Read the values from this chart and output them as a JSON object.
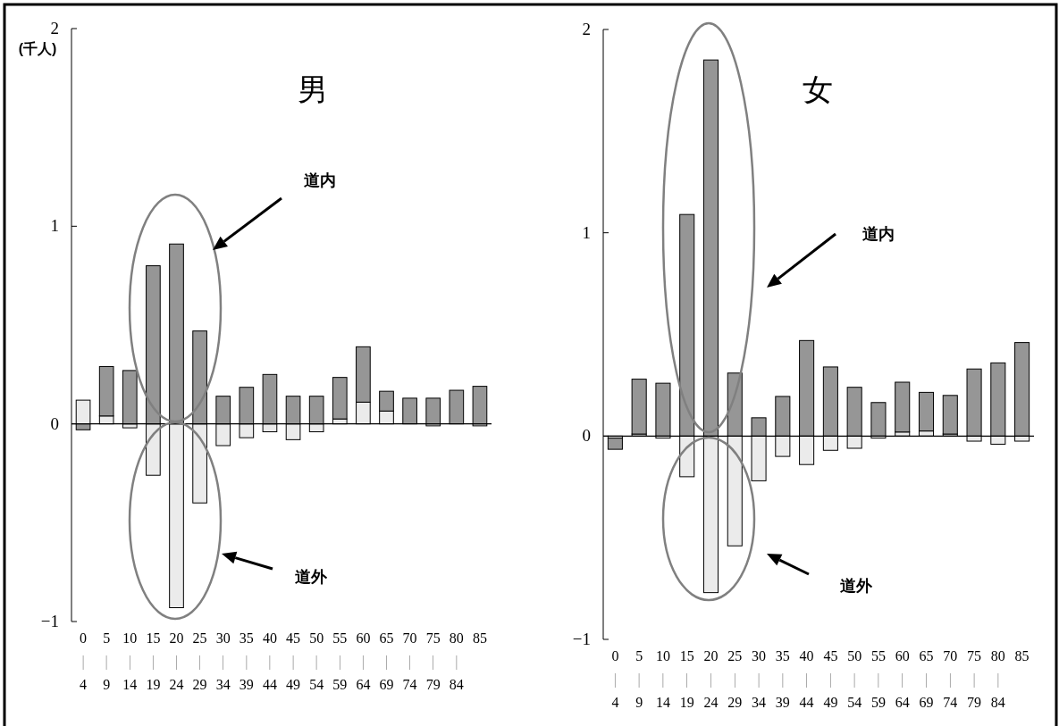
{
  "chart_data": [
    {
      "type": "bar",
      "title": "男",
      "ylabel": "(千人)",
      "stacked": true,
      "categories": [
        "0\n|\n4",
        "5\n|\n9",
        "10\n|\n14",
        "15\n|\n19",
        "20\n|\n24",
        "25\n|\n29",
        "30\n|\n34",
        "35\n|\n39",
        "40\n|\n44",
        "45\n|\n49",
        "50\n|\n54",
        "55\n|\n59",
        "60\n|\n64",
        "65\n|\n69",
        "70\n|\n74",
        "75\n|\n79",
        "80\n|\n84",
        "85"
      ],
      "series": [
        {
          "color": "#ebebeb",
          "values": [
            0.12,
            0.04,
            -0.02,
            -0.26,
            -0.93,
            -0.4,
            -0.11,
            -0.07,
            -0.04,
            -0.08,
            -0.04,
            0.025,
            0.11,
            0.065,
            0,
            -0.01,
            0,
            -0.01
          ]
        },
        {
          "color": "#969696",
          "values": [
            -0.03,
            0.25,
            0.27,
            0.8,
            0.91,
            0.47,
            0.14,
            0.185,
            0.25,
            0.14,
            0.14,
            0.21,
            0.28,
            0.1,
            0.13,
            0.13,
            0.17,
            0.19
          ]
        }
      ],
      "ylim": [
        -1,
        2
      ],
      "yticks": [
        {
          "value": -1,
          "label": "−1"
        },
        0,
        1,
        2
      ],
      "annotations": [
        "道内",
        "道外"
      ]
    },
    {
      "type": "bar",
      "title": "女",
      "stacked": true,
      "categories": [
        "0\n|\n4",
        "5\n|\n9",
        "10\n|\n14",
        "15\n|\n19",
        "20\n|\n24",
        "25\n|\n29",
        "30\n|\n34",
        "35\n|\n39",
        "40\n|\n44",
        "45\n|\n49",
        "50\n|\n54",
        "55\n|\n59",
        "60\n|\n64",
        "65\n|\n69",
        "70\n|\n74",
        "75\n|\n79",
        "80\n|\n84",
        "85"
      ],
      "series": [
        {
          "color": "#ebebeb",
          "values": [
            -0.01,
            0.01,
            -0.01,
            -0.2,
            -0.77,
            -0.54,
            -0.22,
            -0.1,
            -0.14,
            -0.07,
            -0.06,
            -0.01,
            0.02,
            0.025,
            0.01,
            -0.025,
            -0.04,
            -0.025
          ]
        },
        {
          "color": "#969696",
          "values": [
            -0.055,
            0.27,
            0.26,
            1.09,
            1.85,
            0.31,
            0.09,
            0.195,
            0.47,
            0.34,
            0.24,
            0.165,
            0.245,
            0.19,
            0.19,
            0.33,
            0.36,
            0.46
          ]
        }
      ],
      "ylim": [
        -1,
        2
      ],
      "yticks": [
        {
          "value": -1,
          "label": "−1"
        },
        0,
        1,
        2
      ],
      "annotations": [
        "道内",
        "道外"
      ]
    }
  ]
}
